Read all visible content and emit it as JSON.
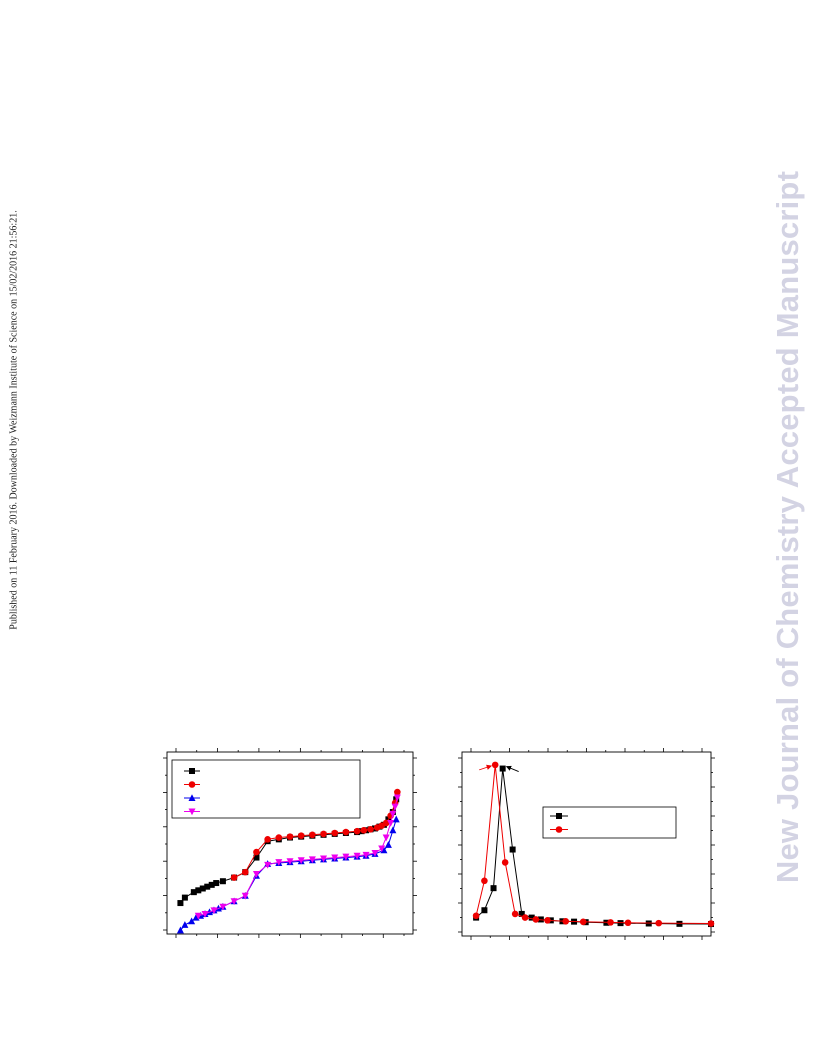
{
  "side_note": "Published on 11 February 2016. Downloaded by Weizmann Institute of Science on 15/02/2016 21:56:21.",
  "watermark": "New Journal of Chemistry Accepted Manuscript",
  "chart_data": [
    {
      "type": "line",
      "title": "",
      "xlabel": "",
      "ylabel": "",
      "xlim": [
        -0.05,
        1.05
      ],
      "ylim": [
        0,
        1
      ],
      "grid": false,
      "legend": "top-left",
      "series": [
        {
          "name": "",
          "color": "#000000",
          "marker": "square",
          "points": [
            [
              0.01,
              0.17
            ],
            [
              0.03,
              0.2
            ],
            [
              0.07,
              0.23
            ],
            [
              0.09,
              0.24
            ],
            [
              0.11,
              0.25
            ],
            [
              0.13,
              0.26
            ],
            [
              0.15,
              0.27
            ],
            [
              0.17,
              0.28
            ],
            [
              0.2,
              0.29
            ],
            [
              0.25,
              0.31
            ],
            [
              0.3,
              0.34
            ],
            [
              0.35,
              0.42
            ],
            [
              0.4,
              0.51
            ],
            [
              0.45,
              0.52
            ],
            [
              0.5,
              0.53
            ],
            [
              0.55,
              0.535
            ],
            [
              0.6,
              0.54
            ],
            [
              0.65,
              0.545
            ],
            [
              0.7,
              0.55
            ],
            [
              0.75,
              0.555
            ],
            [
              0.8,
              0.56
            ],
            [
              0.82,
              0.565
            ],
            [
              0.84,
              0.57
            ],
            [
              0.86,
              0.575
            ],
            [
              0.88,
              0.58
            ],
            [
              0.9,
              0.59
            ],
            [
              0.92,
              0.6
            ],
            [
              0.94,
              0.63
            ],
            [
              0.96,
              0.67
            ],
            [
              0.975,
              0.74
            ]
          ]
        },
        {
          "name": "",
          "color": "#ee0000",
          "marker": "circle",
          "points": [
            [
              0.25,
              0.31
            ],
            [
              0.3,
              0.34
            ],
            [
              0.35,
              0.45
            ],
            [
              0.4,
              0.52
            ],
            [
              0.45,
              0.53
            ],
            [
              0.5,
              0.535
            ],
            [
              0.55,
              0.54
            ],
            [
              0.6,
              0.545
            ],
            [
              0.65,
              0.55
            ],
            [
              0.7,
              0.555
            ],
            [
              0.75,
              0.56
            ],
            [
              0.8,
              0.565
            ],
            [
              0.83,
              0.57
            ],
            [
              0.86,
              0.575
            ],
            [
              0.89,
              0.585
            ],
            [
              0.91,
              0.595
            ],
            [
              0.93,
              0.61
            ],
            [
              0.95,
              0.65
            ],
            [
              0.97,
              0.72
            ],
            [
              0.98,
              0.78
            ]
          ]
        },
        {
          "name": "",
          "color": "#0000ee",
          "marker": "triangle-up",
          "points": [
            [
              0.01,
              0.02
            ],
            [
              0.03,
              0.05
            ],
            [
              0.06,
              0.07
            ],
            [
              0.08,
              0.09
            ],
            [
              0.1,
              0.1
            ],
            [
              0.12,
              0.11
            ],
            [
              0.14,
              0.12
            ],
            [
              0.16,
              0.13
            ],
            [
              0.18,
              0.14
            ],
            [
              0.2,
              0.15
            ],
            [
              0.25,
              0.18
            ],
            [
              0.3,
              0.21
            ],
            [
              0.35,
              0.32
            ],
            [
              0.4,
              0.385
            ],
            [
              0.45,
              0.39
            ],
            [
              0.5,
              0.395
            ],
            [
              0.55,
              0.4
            ],
            [
              0.6,
              0.405
            ],
            [
              0.65,
              0.41
            ],
            [
              0.7,
              0.415
            ],
            [
              0.75,
              0.42
            ],
            [
              0.8,
              0.425
            ],
            [
              0.84,
              0.43
            ],
            [
              0.88,
              0.44
            ],
            [
              0.92,
              0.46
            ],
            [
              0.94,
              0.49
            ],
            [
              0.96,
              0.57
            ],
            [
              0.975,
              0.63
            ]
          ]
        },
        {
          "name": "",
          "color": "#ee00ee",
          "marker": "triangle-down",
          "points": [
            [
              0.09,
              0.1
            ],
            [
              0.12,
              0.11
            ],
            [
              0.16,
              0.13
            ],
            [
              0.2,
              0.15
            ],
            [
              0.25,
              0.18
            ],
            [
              0.3,
              0.21
            ],
            [
              0.35,
              0.33
            ],
            [
              0.4,
              0.38
            ],
            [
              0.45,
              0.395
            ],
            [
              0.5,
              0.4
            ],
            [
              0.55,
              0.405
            ],
            [
              0.6,
              0.41
            ],
            [
              0.65,
              0.415
            ],
            [
              0.7,
              0.42
            ],
            [
              0.75,
              0.425
            ],
            [
              0.8,
              0.43
            ],
            [
              0.84,
              0.435
            ],
            [
              0.88,
              0.445
            ],
            [
              0.91,
              0.47
            ],
            [
              0.93,
              0.53
            ],
            [
              0.95,
              0.61
            ],
            [
              0.96,
              0.66
            ],
            [
              0.97,
              0.7
            ],
            [
              0.98,
              0.75
            ]
          ]
        }
      ]
    },
    {
      "type": "line",
      "title": "",
      "xlabel": "",
      "ylabel": "",
      "xlim": [
        0,
        30
      ],
      "ylim": [
        0,
        100
      ],
      "grid": false,
      "legend": "center-right",
      "series": [
        {
          "name": "",
          "color": "#000000",
          "marker": "square",
          "points": [
            [
              1.7,
              10
            ],
            [
              2.7,
              14
            ],
            [
              3.8,
              26
            ],
            [
              4.9,
              91
            ],
            [
              6.1,
              47
            ],
            [
              7.2,
              12
            ],
            [
              8.4,
              10
            ],
            [
              9.5,
              9
            ],
            [
              10.7,
              8.5
            ],
            [
              12.1,
              8
            ],
            [
              13.5,
              7.8
            ],
            [
              14.9,
              7.5
            ],
            [
              17.4,
              7.2
            ],
            [
              19.1,
              7
            ],
            [
              22.5,
              6.8
            ],
            [
              26.2,
              6.6
            ],
            [
              30,
              6.5
            ]
          ]
        },
        {
          "name": "",
          "color": "#ee0000",
          "marker": "circle",
          "points": [
            [
              1.7,
              11
            ],
            [
              2.7,
              30
            ],
            [
              4,
              93
            ],
            [
              5.2,
              40
            ],
            [
              6.4,
              12
            ],
            [
              7.6,
              10
            ],
            [
              8.9,
              9
            ],
            [
              10.3,
              8.5
            ],
            [
              12.5,
              8
            ],
            [
              14.6,
              7.7
            ],
            [
              17.9,
              7.4
            ],
            [
              20,
              7.2
            ],
            [
              23.7,
              7
            ],
            [
              30,
              6.8
            ]
          ]
        }
      ]
    }
  ]
}
